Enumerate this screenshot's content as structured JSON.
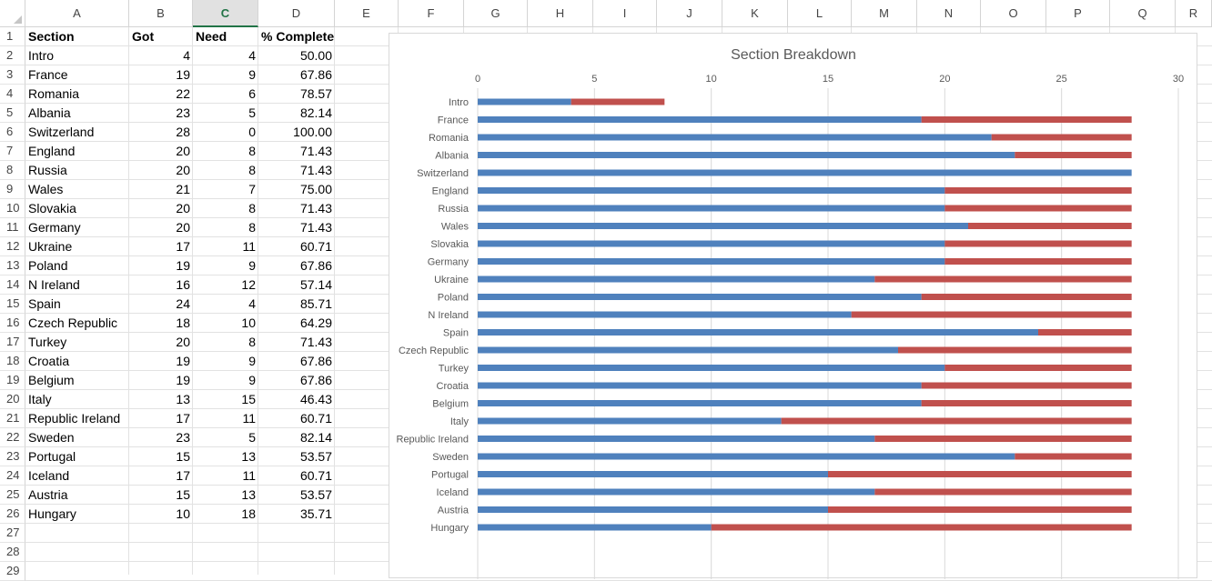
{
  "sheet": {
    "columns": [
      "A",
      "B",
      "C",
      "D",
      "E",
      "F",
      "G",
      "H",
      "I",
      "J",
      "K",
      "L",
      "M",
      "N",
      "O",
      "P",
      "Q",
      "R"
    ],
    "selected_column": "C",
    "row_numbers": [
      "1",
      "2",
      "3",
      "4",
      "5",
      "6",
      "7",
      "8",
      "9",
      "10",
      "11",
      "12",
      "13",
      "14",
      "15",
      "16",
      "17",
      "18",
      "19",
      "20",
      "21",
      "22",
      "23",
      "24",
      "25",
      "26",
      "27",
      "28",
      "29"
    ],
    "headers": {
      "section": "Section",
      "got": "Got",
      "need": "Need",
      "complete": "% Complete"
    },
    "rows": [
      [
        "Intro",
        "4",
        "4",
        "50.00"
      ],
      [
        "France",
        "19",
        "9",
        "67.86"
      ],
      [
        "Romania",
        "22",
        "6",
        "78.57"
      ],
      [
        "Albania",
        "23",
        "5",
        "82.14"
      ],
      [
        "Switzerland",
        "28",
        "0",
        "100.00"
      ],
      [
        "England",
        "20",
        "8",
        "71.43"
      ],
      [
        "Russia",
        "20",
        "8",
        "71.43"
      ],
      [
        "Wales",
        "21",
        "7",
        "75.00"
      ],
      [
        "Slovakia",
        "20",
        "8",
        "71.43"
      ],
      [
        "Germany",
        "20",
        "8",
        "71.43"
      ],
      [
        "Ukraine",
        "17",
        "11",
        "60.71"
      ],
      [
        "Poland",
        "19",
        "9",
        "67.86"
      ],
      [
        "N Ireland",
        "16",
        "12",
        "57.14"
      ],
      [
        "Spain",
        "24",
        "4",
        "85.71"
      ],
      [
        "Czech Republic",
        "18",
        "10",
        "64.29"
      ],
      [
        "Turkey",
        "20",
        "8",
        "71.43"
      ],
      [
        "Croatia",
        "19",
        "9",
        "67.86"
      ],
      [
        "Belgium",
        "19",
        "9",
        "67.86"
      ],
      [
        "Italy",
        "13",
        "15",
        "46.43"
      ],
      [
        "Republic Ireland",
        "17",
        "11",
        "60.71"
      ],
      [
        "Sweden",
        "23",
        "5",
        "82.14"
      ],
      [
        "Portugal",
        "15",
        "13",
        "53.57"
      ],
      [
        "Iceland",
        "17",
        "11",
        "60.71"
      ],
      [
        "Austria",
        "15",
        "13",
        "53.57"
      ],
      [
        "Hungary",
        "10",
        "18",
        "35.71"
      ]
    ]
  },
  "colors": {
    "got": "#4f81bd",
    "need": "#c0504d",
    "selected_header": "#217346"
  },
  "chart_data": {
    "type": "bar",
    "orientation": "horizontal",
    "stacked": true,
    "title": "Section Breakdown",
    "categories": [
      "Intro",
      "France",
      "Romania",
      "Albania",
      "Switzerland",
      "England",
      "Russia",
      "Wales",
      "Slovakia",
      "Germany",
      "Ukraine",
      "Poland",
      "N Ireland",
      "Spain",
      "Czech Republic",
      "Turkey",
      "Croatia",
      "Belgium",
      "Italy",
      "Republic Ireland",
      "Sweden",
      "Portugal",
      "Iceland",
      "Austria",
      "Hungary"
    ],
    "series": [
      {
        "values": [
          4,
          19,
          22,
          23,
          28,
          20,
          20,
          21,
          20,
          20,
          17,
          19,
          16,
          24,
          18,
          20,
          19,
          19,
          13,
          17,
          23,
          15,
          17,
          15,
          10
        ],
        "color": "#4f81bd"
      },
      {
        "values": [
          4,
          9,
          6,
          5,
          0,
          8,
          8,
          7,
          8,
          8,
          11,
          9,
          12,
          4,
          10,
          8,
          9,
          9,
          15,
          11,
          5,
          13,
          11,
          13,
          18
        ],
        "color": "#c0504d"
      }
    ],
    "xlim": [
      0,
      30
    ],
    "xticks": [
      "0",
      "5",
      "10",
      "15",
      "20",
      "25",
      "30"
    ],
    "grid": true,
    "legend": "none"
  }
}
